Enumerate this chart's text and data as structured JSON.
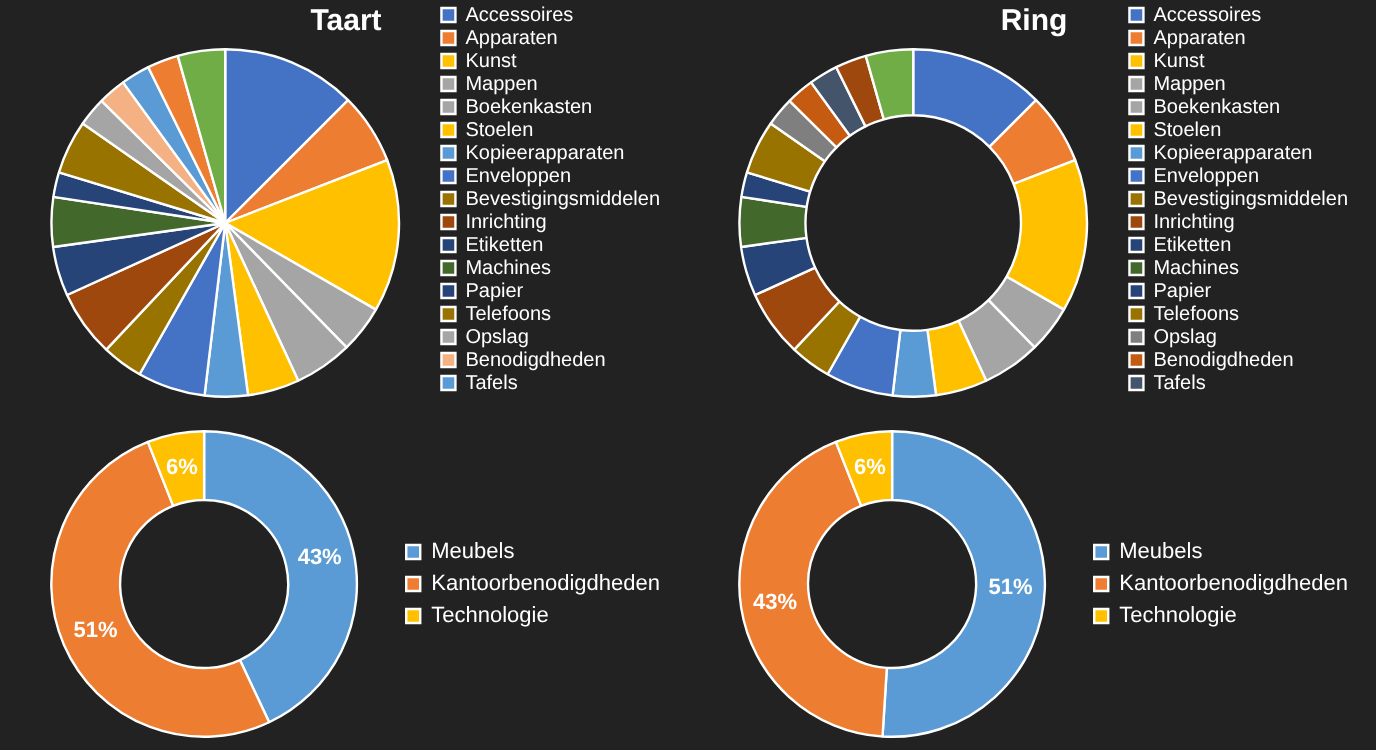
{
  "chart_data": [
    {
      "type": "pie",
      "title": "Taart",
      "legend": "right",
      "categories": [
        "Accessoires",
        "Apparaten",
        "Kunst",
        "Mappen",
        "Boekenkasten",
        "Stoelen",
        "Kopieerapparaten",
        "Enveloppen",
        "Bevestigingsmiddelen",
        "Inrichting",
        "Etiketten",
        "Machines",
        "Papier",
        "Telefoons",
        "Opslag",
        "Benodigdheden",
        "Tafels",
        null,
        null
      ],
      "values": [
        12.5,
        6.6,
        14.2,
        4.4,
        5.4,
        4.8,
        4.0,
        6.3,
        3.8,
        6.2,
        4.6,
        4.6,
        2.3,
        5.0,
        2.7,
        2.6,
        2.7,
        2.9,
        4.4
      ],
      "colors": [
        "#4472c4",
        "#ed7d31",
        "#ffc000",
        "#a5a5a5",
        "#a5a5a5",
        "#ffc000",
        "#5b9bd5",
        "#4472c4",
        "#997300",
        "#9e480e",
        "#264478",
        "#43682b",
        "#264478",
        "#997300",
        "#a5a5a5",
        "#f4b183",
        "#5b9bd5",
        "#ed7d31",
        "#70ad47"
      ]
    },
    {
      "type": "donut",
      "title": "Ring",
      "legend": "right",
      "categories": [
        "Accessoires",
        "Apparaten",
        "Kunst",
        "Mappen",
        "Boekenkasten",
        "Stoelen",
        "Kopieerapparaten",
        "Enveloppen",
        "Bevestigingsmiddelen",
        "Inrichting",
        "Etiketten",
        "Machines",
        "Papier",
        "Telefoons",
        "Opslag",
        "Benodigdheden",
        "Tafels",
        null,
        null
      ],
      "values": [
        12.5,
        6.6,
        14.2,
        4.4,
        5.4,
        4.8,
        4.0,
        6.3,
        3.8,
        6.2,
        4.6,
        4.6,
        2.3,
        5.0,
        2.7,
        2.6,
        2.7,
        2.9,
        4.4
      ],
      "colors": [
        "#4472c4",
        "#ed7d31",
        "#ffc000",
        "#a5a5a5",
        "#a5a5a5",
        "#ffc000",
        "#5b9bd5",
        "#4472c4",
        "#997300",
        "#9e480e",
        "#264478",
        "#43682b",
        "#264478",
        "#997300",
        "#7f7f7f",
        "#c55a11",
        "#44546a",
        "#9e480e",
        "#70ad47"
      ]
    },
    {
      "type": "donut",
      "legend": "right",
      "categories": [
        "Meubels",
        "Kantoorbenodigdheden",
        "Technologie"
      ],
      "values": [
        43,
        51,
        6
      ],
      "value_labels": [
        "43%",
        "51%",
        "6%"
      ],
      "colors": [
        "#5b9bd5",
        "#ed7d31",
        "#ffc000"
      ]
    },
    {
      "type": "donut",
      "legend": "right",
      "categories": [
        "Meubels",
        "Kantoorbenodigdheden",
        "Technologie"
      ],
      "values": [
        51,
        43,
        6
      ],
      "value_labels": [
        "51%",
        "43%",
        "6%"
      ],
      "colors": [
        "#5b9bd5",
        "#ed7d31",
        "#ffc000"
      ]
    }
  ]
}
